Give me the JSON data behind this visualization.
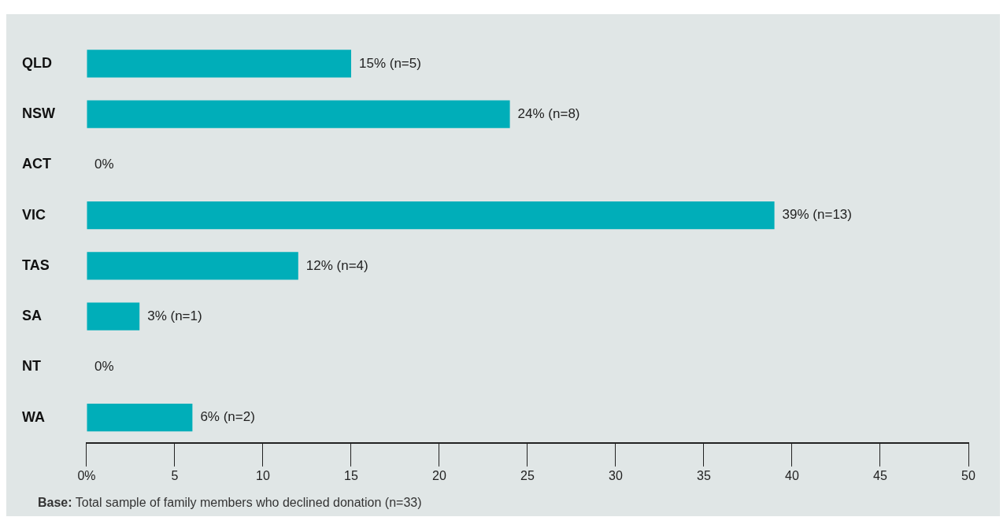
{
  "chart_data": {
    "type": "bar",
    "orientation": "horizontal",
    "categories": [
      "QLD",
      "NSW",
      "ACT",
      "VIC",
      "TAS",
      "SA",
      "NT",
      "WA"
    ],
    "values": [
      15,
      24,
      0,
      39,
      12,
      3,
      0,
      6
    ],
    "value_labels": [
      "15% (n=5)",
      "24% (n=8)",
      "0%",
      "39% (n=13)",
      "12% (n=4)",
      "3% (n=1)",
      "0%",
      "6% (n=2)"
    ],
    "color": "#00aeb9",
    "xlim": [
      0,
      50
    ],
    "xticks": [
      {
        "value": 0,
        "label": "0%"
      },
      5,
      10,
      15,
      20,
      25,
      30,
      35,
      40,
      45,
      50
    ],
    "grid": false,
    "legend": false,
    "annotations": [
      "Base: Total sample of family members who declined donation (n=33)"
    ]
  }
}
